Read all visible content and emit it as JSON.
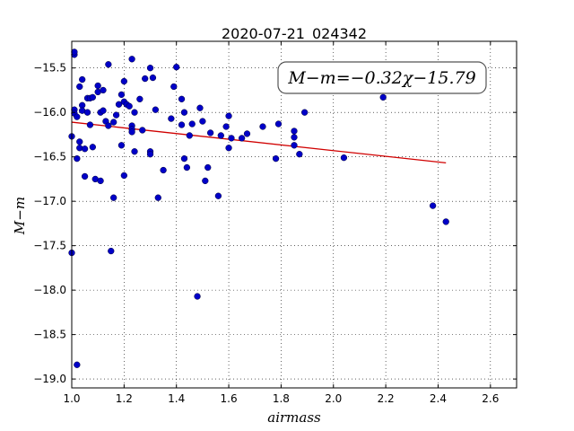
{
  "chart_data": {
    "type": "scatter",
    "title": "2020-07-21_024342",
    "xlabel": "airmass",
    "ylabel": "M−m",
    "xlim": [
      1.0,
      2.7
    ],
    "ylim": [
      -19.1,
      -15.2
    ],
    "y_inverted": false,
    "grid": true,
    "x_ticks": [
      1.0,
      1.2,
      1.4,
      1.6,
      1.8,
      2.0,
      2.2,
      2.4,
      2.6
    ],
    "x_tick_labels": [
      "1.0",
      "1.2",
      "1.4",
      "1.6",
      "1.8",
      "2.0",
      "2.2",
      "2.4",
      "2.6"
    ],
    "y_ticks": [
      -15.5,
      -16.0,
      -16.5,
      -17.0,
      -17.5,
      -18.0,
      -18.5,
      -19.0
    ],
    "y_tick_labels": [
      "−15.5",
      "−16.0",
      "−16.5",
      "−17.0",
      "−17.5",
      "−18.0",
      "−18.5",
      "−19.0"
    ],
    "annotation": "M−m=−0.32χ−15.79",
    "fit": {
      "slope": -0.32,
      "intercept": -15.79,
      "x_range": [
        1.0,
        2.43
      ],
      "color": "#d00000"
    },
    "marker_color": "#0000c8",
    "points": [
      [
        1.0,
        -16.27
      ],
      [
        1.0,
        -17.58
      ],
      [
        1.01,
        -15.97
      ],
      [
        1.01,
        -16.01
      ],
      [
        1.01,
        -15.35
      ],
      [
        1.01,
        -15.32
      ],
      [
        1.02,
        -16.05
      ],
      [
        1.02,
        -16.52
      ],
      [
        1.02,
        -18.84
      ],
      [
        1.03,
        -15.71
      ],
      [
        1.03,
        -16.4
      ],
      [
        1.03,
        -16.33
      ],
      [
        1.04,
        -15.63
      ],
      [
        1.04,
        -15.92
      ],
      [
        1.04,
        -15.98
      ],
      [
        1.05,
        -16.72
      ],
      [
        1.05,
        -16.41
      ],
      [
        1.06,
        -15.84
      ],
      [
        1.06,
        -16.0
      ],
      [
        1.07,
        -15.84
      ],
      [
        1.07,
        -16.14
      ],
      [
        1.08,
        -15.83
      ],
      [
        1.08,
        -16.39
      ],
      [
        1.09,
        -16.75
      ],
      [
        1.1,
        -15.7
      ],
      [
        1.1,
        -15.77
      ],
      [
        1.11,
        -16.0
      ],
      [
        1.11,
        -16.77
      ],
      [
        1.12,
        -15.75
      ],
      [
        1.12,
        -15.98
      ],
      [
        1.13,
        -16.1
      ],
      [
        1.14,
        -15.46
      ],
      [
        1.14,
        -16.15
      ],
      [
        1.15,
        -17.56
      ],
      [
        1.16,
        -16.11
      ],
      [
        1.16,
        -16.96
      ],
      [
        1.17,
        -16.03
      ],
      [
        1.18,
        -15.91
      ],
      [
        1.19,
        -15.8
      ],
      [
        1.19,
        -16.37
      ],
      [
        1.2,
        -15.65
      ],
      [
        1.2,
        -15.88
      ],
      [
        1.2,
        -16.71
      ],
      [
        1.21,
        -15.91
      ],
      [
        1.22,
        -15.93
      ],
      [
        1.23,
        -15.4
      ],
      [
        1.23,
        -16.15
      ],
      [
        1.23,
        -16.19
      ],
      [
        1.23,
        -16.22
      ],
      [
        1.24,
        -16.0
      ],
      [
        1.24,
        -16.44
      ],
      [
        1.26,
        -15.85
      ],
      [
        1.27,
        -16.2
      ],
      [
        1.28,
        -15.62
      ],
      [
        1.3,
        -15.5
      ],
      [
        1.3,
        -16.44
      ],
      [
        1.3,
        -16.47
      ],
      [
        1.31,
        -15.61
      ],
      [
        1.32,
        -15.97
      ],
      [
        1.33,
        -16.96
      ],
      [
        1.35,
        -16.65
      ],
      [
        1.38,
        -16.07
      ],
      [
        1.39,
        -15.71
      ],
      [
        1.4,
        -15.49
      ],
      [
        1.42,
        -15.85
      ],
      [
        1.42,
        -16.14
      ],
      [
        1.43,
        -16.0
      ],
      [
        1.43,
        -16.52
      ],
      [
        1.44,
        -16.62
      ],
      [
        1.45,
        -16.26
      ],
      [
        1.46,
        -16.13
      ],
      [
        1.48,
        -18.07
      ],
      [
        1.49,
        -15.95
      ],
      [
        1.5,
        -16.1
      ],
      [
        1.51,
        -16.77
      ],
      [
        1.52,
        -16.62
      ],
      [
        1.53,
        -16.23
      ],
      [
        1.56,
        -16.94
      ],
      [
        1.57,
        -16.26
      ],
      [
        1.59,
        -16.16
      ],
      [
        1.6,
        -16.04
      ],
      [
        1.6,
        -16.4
      ],
      [
        1.61,
        -16.29
      ],
      [
        1.65,
        -16.29
      ],
      [
        1.67,
        -16.24
      ],
      [
        1.73,
        -16.16
      ],
      [
        1.78,
        -16.52
      ],
      [
        1.79,
        -16.13
      ],
      [
        1.85,
        -16.21
      ],
      [
        1.85,
        -16.28
      ],
      [
        1.85,
        -16.37
      ],
      [
        1.87,
        -16.47
      ],
      [
        1.89,
        -16.0
      ],
      [
        2.04,
        -16.51
      ],
      [
        2.19,
        -15.83
      ],
      [
        2.38,
        -17.05
      ],
      [
        2.43,
        -17.23
      ]
    ]
  }
}
